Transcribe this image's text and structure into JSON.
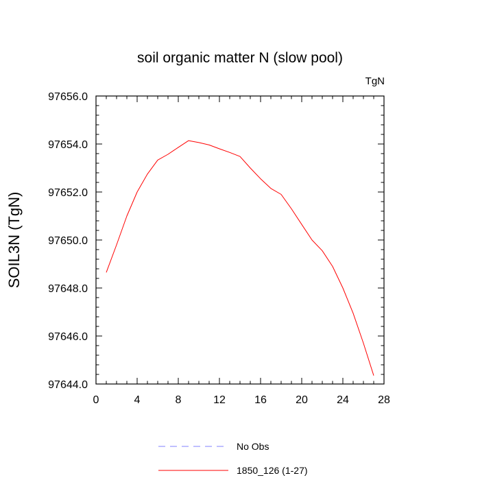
{
  "chart_data": {
    "type": "line",
    "title": "soil organic matter N (slow pool)",
    "units_label": "TgN",
    "xlabel": "",
    "ylabel": "SOIL3N  (TgN)",
    "xlim": [
      0,
      28
    ],
    "ylim": [
      97644.0,
      97656.0
    ],
    "x_ticks": [
      0,
      4,
      8,
      12,
      16,
      20,
      24,
      28
    ],
    "x_tick_labels": [
      "0",
      "4",
      "8",
      "12",
      "16",
      "20",
      "24",
      "28"
    ],
    "y_ticks": [
      97644.0,
      97646.0,
      97648.0,
      97650.0,
      97652.0,
      97654.0,
      97656.0
    ],
    "y_tick_labels": [
      "97644.0",
      "97646.0",
      "97648.0",
      "97650.0",
      "97652.0",
      "97654.0",
      "97656.0"
    ],
    "series": [
      {
        "name": "1850_126 (1-27)",
        "color": "#ff0000",
        "style": "solid",
        "x": [
          1,
          2,
          3,
          4,
          5,
          6,
          7,
          8,
          9,
          10,
          11,
          12,
          13,
          14,
          15,
          16,
          17,
          18,
          19,
          20,
          21,
          22,
          23,
          24,
          25,
          26,
          27
        ],
        "values": [
          97648.65,
          97649.8,
          97651.0,
          97652.0,
          97652.75,
          97653.33,
          97653.57,
          97653.86,
          97654.14,
          97654.06,
          97653.96,
          97653.8,
          97653.65,
          97653.48,
          97653.0,
          97652.55,
          97652.15,
          97651.9,
          97651.3,
          97650.65,
          97650.0,
          97649.55,
          97648.9,
          97648.0,
          97646.95,
          97645.7,
          97644.35
        ]
      }
    ],
    "legend": [
      {
        "label": "No Obs",
        "color": "#8080ff",
        "style": "dashed"
      },
      {
        "label": "1850_126 (1-27)",
        "color": "#ff0000",
        "style": "solid"
      }
    ],
    "legend_position": "bottom-center"
  }
}
